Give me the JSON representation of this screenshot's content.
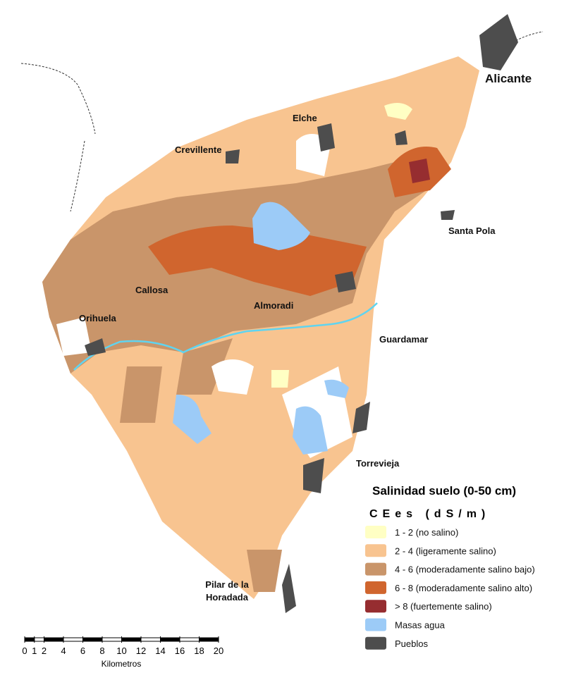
{
  "places": [
    {
      "label": "Alicante"
    },
    {
      "label": "Elche"
    },
    {
      "label": "Crevillente"
    },
    {
      "label": "Santa Pola"
    },
    {
      "label": "Callosa"
    },
    {
      "label": "Orihuela"
    },
    {
      "label": "Almoradi"
    },
    {
      "label": "Guardamar"
    },
    {
      "label": "Torrevieja"
    },
    {
      "label": "Pilar de la"
    },
    {
      "label": "Horadada"
    }
  ],
  "legend": {
    "title": "Salinidad suelo (0-50 cm)",
    "subtitle": "CEes (dS/m)",
    "items": [
      {
        "label": "1 - 2 (no salino)",
        "color": "#ffffc4"
      },
      {
        "label": "2 - 4 (ligeramente salino)",
        "color": "#f8c490"
      },
      {
        "label": "4 - 6 (moderadamente salino bajo)",
        "color": "#c9956a"
      },
      {
        "label": "6 - 8 (moderadamente salino alto)",
        "color": "#d0652e"
      },
      {
        "label": "> 8 (fuertemente salino)",
        "color": "#962d30"
      },
      {
        "label": "Masas agua",
        "color": "#9ccbf7"
      },
      {
        "label": "Pueblos",
        "color": "#4d4d4d"
      }
    ]
  },
  "scale_bar": {
    "ticks": [
      0,
      1,
      2,
      4,
      6,
      8,
      10,
      12,
      14,
      16,
      18,
      20
    ],
    "label": "Kilometros"
  }
}
